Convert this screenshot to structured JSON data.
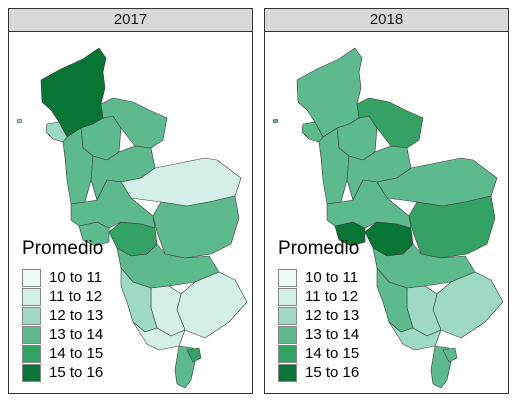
{
  "legend": {
    "title": "Promedio",
    "classes": [
      {
        "label": "10 to 11",
        "color": "#edf8fb"
      },
      {
        "label": "11 to 12",
        "color": "#d4efe8"
      },
      {
        "label": "12 to 13",
        "color": "#9ed9c6"
      },
      {
        "label": "13 to 14",
        "color": "#5dba8f"
      },
      {
        "label": "14 to 15",
        "color": "#35a265"
      },
      {
        "label": "15 to 16",
        "color": "#087534"
      }
    ]
  },
  "panels": [
    {
      "title": "2017",
      "region_classes": {
        "north": 5,
        "northwest": 2,
        "north_center": 3,
        "north_east": 3,
        "mid_west": 3,
        "mid_center": 3,
        "east_upper": 1,
        "east_lower": 3,
        "core": 4,
        "core_small": 3,
        "center_band": 3,
        "center_south": 3,
        "south_east": 1,
        "south_mid": 1,
        "south_west": 2,
        "coast_south": 1,
        "tip": 3,
        "tip_small": 4,
        "islet": 2
      }
    },
    {
      "title": "2018",
      "region_classes": {
        "north": 3,
        "northwest": 3,
        "north_center": 3,
        "north_east": 4,
        "mid_west": 3,
        "mid_center": 3,
        "east_upper": 3,
        "east_lower": 4,
        "core": 5,
        "core_small": 5,
        "center_band": 3,
        "center_south": 3,
        "south_east": 2,
        "south_mid": 2,
        "south_west": 3,
        "coast_south": 2,
        "tip": 3,
        "tip_small": 3,
        "islet": 3
      }
    }
  ]
}
